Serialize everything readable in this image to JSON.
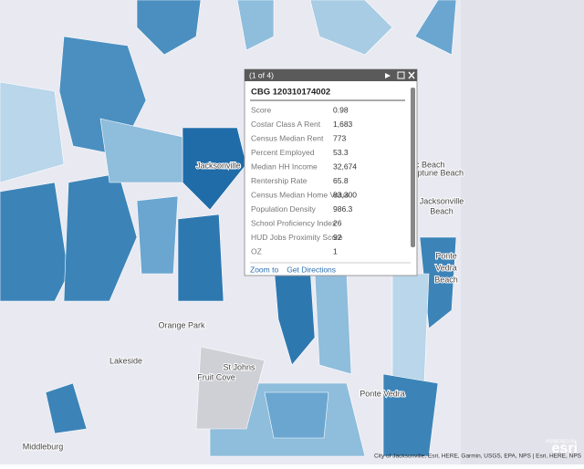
{
  "map_labels": [
    "Jacksonville",
    "Atlantic Beach",
    "Neptune Beach",
    "Jacksonville",
    "Beach",
    "Ponte",
    "Vedra",
    "Beach",
    "Orange Park",
    "Lakeside",
    "St Johns",
    "Fruit Cove",
    "Ponte Vedra",
    "Middleburg"
  ],
  "popup": {
    "counter": "(1 of 4)",
    "title": "CBG 120310174002",
    "rows": [
      [
        "Score",
        "0.98"
      ],
      [
        "Costar Class A Rent",
        "1,683"
      ],
      [
        "Census Median Rent",
        "773"
      ],
      [
        "Percent Employed",
        "53.3"
      ],
      [
        "Median HH Income",
        "32,674"
      ],
      [
        "Rentership Rate",
        "65.8"
      ],
      [
        "Census Median Home Value",
        "83,300"
      ],
      [
        "Population Density",
        "986.3"
      ],
      [
        "School Proficiency Index",
        "26"
      ],
      [
        "HUD Jobs Proximity Score",
        "92"
      ],
      [
        "OZ",
        "1"
      ]
    ],
    "actions": [
      "Zoom to",
      "Get Directions"
    ]
  },
  "attribution": "City of Jacksonville, Esri, HERE, Garmin, USGS, EPA, NPS | Esri, HERE, NPS",
  "logo": {
    "caption": "POWERED BY",
    "brand": "esri"
  }
}
